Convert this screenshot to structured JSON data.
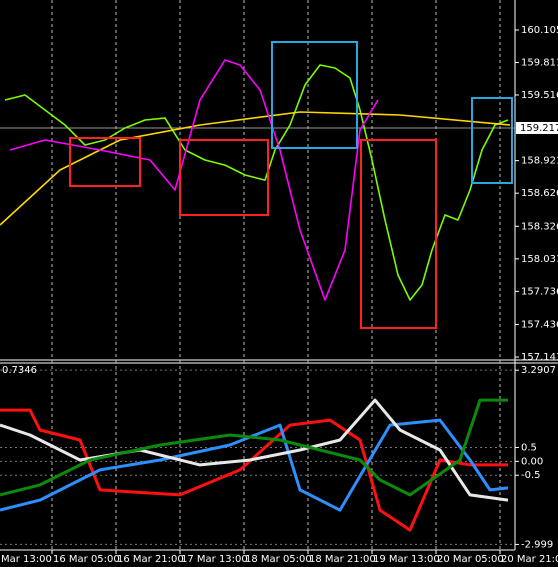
{
  "chart_data": [
    {
      "type": "line",
      "xlim": [
        3,
        131.75
      ],
      "ylim": [
        157.114,
        160.377
      ],
      "yticks": [
        160.105,
        159.811,
        159.516,
        158.921,
        158.626,
        158.326,
        158.031,
        157.736,
        157.436,
        157.141
      ],
      "current_price": 159.217,
      "series": [
        {
          "color": "#7cfc00",
          "x": [
            4.25,
            9.25,
            14.25,
            19.25,
            24.25,
            29.25,
            34.25,
            39.25,
            44.25,
            49.25,
            54.25,
            59.25,
            64.25,
            69.25,
            71.75,
            75.5,
            79.25,
            83,
            86.75,
            90.5,
            93,
            96,
            99.25,
            102.5,
            105.5,
            108.5,
            111,
            114.25,
            117.5,
            120.5,
            123.5,
            126.75,
            130
          ],
          "values": [
            159.471,
            159.516,
            159.38,
            159.244,
            159.063,
            159.108,
            159.217,
            159.289,
            159.307,
            159.017,
            158.927,
            158.881,
            158.791,
            158.745,
            159.017,
            159.244,
            159.607,
            159.788,
            159.761,
            159.67,
            159.38,
            158.927,
            158.383,
            157.884,
            157.658,
            157.794,
            158.111,
            158.428,
            158.383,
            158.655,
            159.017,
            159.244,
            159.289
          ]
        },
        {
          "color": "#ffd700",
          "x": [
            3,
            18,
            33,
            53,
            78,
            103,
            130.5
          ],
          "values": [
            158.338,
            158.836,
            159.108,
            159.244,
            159.362,
            159.335,
            159.244
          ]
        },
        {
          "color": "#ff00ff",
          "x": [
            5.5,
            14.25,
            28,
            40.5,
            46.75,
            53,
            59.25,
            63,
            68,
            73,
            78,
            84.25,
            89.25,
            93,
            97.5
          ],
          "values": [
            159.017,
            159.108,
            159.017,
            158.927,
            158.655,
            159.471,
            159.833,
            159.788,
            159.561,
            159.017,
            158.292,
            157.657,
            158.11,
            159.199,
            159.471
          ]
        }
      ]
    },
    {
      "type": "line",
      "annotation": "0.7346",
      "xlim": [
        3,
        131.75
      ],
      "xticks": [
        {
          "value": 0,
          "label": "Mar 13:00"
        },
        {
          "value": 16,
          "label": "16 Mar 05:00"
        },
        {
          "value": 32,
          "label": "16 Mar 21:00"
        },
        {
          "value": 48,
          "label": "17 Mar 13:00"
        },
        {
          "value": 64,
          "label": "18 Mar 05:00"
        },
        {
          "value": 80,
          "label": "18 Mar 21:00"
        },
        {
          "value": 96,
          "label": "19 Mar 13:00"
        },
        {
          "value": 112,
          "label": "20 Mar 05:00"
        },
        {
          "value": 128,
          "label": "20 Mar 21:00"
        }
      ],
      "ylim": [
        -3.2,
        3.55
      ],
      "yticks": [
        3.2907,
        0.5,
        {
          "value": 0,
          "label": "0.00"
        },
        -0.5,
        -2.999
      ],
      "series": [
        {
          "color": "#ff1010",
          "x": [
            3,
            10.5,
            13,
            23,
            28,
            48,
            63,
            75.5,
            85.5,
            93,
            98,
            105.5,
            113,
            120.5,
            130
          ],
          "values": [
            1.85,
            1.85,
            1.13,
            0.77,
            -1.03,
            -1.21,
            -0.31,
            1.31,
            1.49,
            0.77,
            -1.76,
            -2.48,
            0.05,
            -0.13,
            -0.13
          ]
        },
        {
          "color": "#2e8fff",
          "x": [
            3,
            13,
            28,
            43,
            60.5,
            73,
            78,
            88,
            100.5,
            113,
            120.5,
            125.5,
            130
          ],
          "values": [
            -1.76,
            -1.4,
            -0.31,
            0.05,
            0.59,
            1.31,
            -1.03,
            -1.76,
            1.31,
            1.49,
            0.05,
            -1.03,
            -0.96
          ]
        },
        {
          "color": "#e8e8e8",
          "x": [
            3,
            10.5,
            23,
            38,
            53,
            65.5,
            78,
            88,
            96.75,
            103,
            113,
            120.5,
            130
          ],
          "values": [
            1.31,
            0.95,
            0.05,
            0.41,
            -0.13,
            0.05,
            0.41,
            0.77,
            2.21,
            1.13,
            0.41,
            -1.21,
            -1.4
          ]
        },
        {
          "color": "#0b8a0b",
          "x": [
            3,
            13,
            25.5,
            43,
            60.5,
            73,
            83,
            93,
            98,
            105.5,
            118,
            123,
            130
          ],
          "values": [
            -1.21,
            -0.85,
            0.05,
            0.59,
            0.95,
            0.77,
            0.41,
            0.05,
            -0.67,
            -1.21,
            0.05,
            2.21,
            2.21
          ]
        }
      ]
    }
  ]
}
